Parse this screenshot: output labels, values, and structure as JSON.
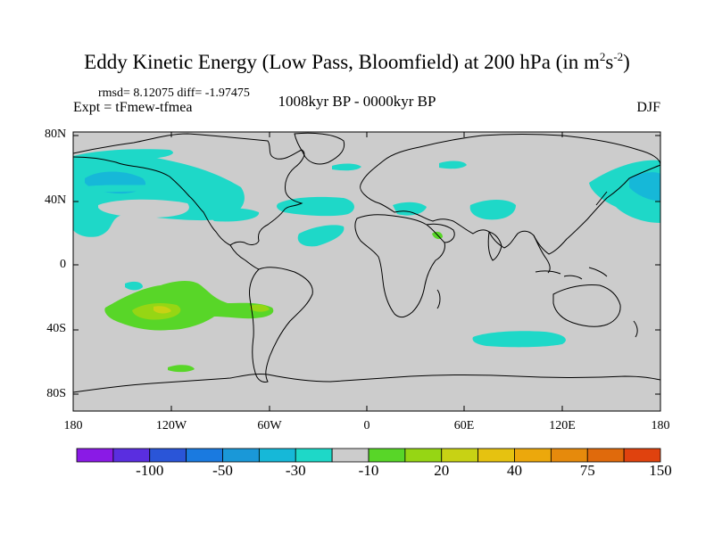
{
  "title": {
    "main": "Eddy Kinetic Energy (Low Pass, Bloomfield) at 200 hPa (in m",
    "sup1": "2",
    "mid": "s",
    "sup2": "-2",
    "close": ")"
  },
  "stats": "rmsd= 8.12075 diff= -1.97475",
  "experiment": "Expt = tFmew-tfmea",
  "period": "1008kyr BP - 0000kyr BP",
  "season": "DJF",
  "lat_labels": [
    "80N",
    "40N",
    "0",
    "40S",
    "80S"
  ],
  "lon_labels": [
    "180",
    "120W",
    "60W",
    "0",
    "60E",
    "120E",
    "180"
  ],
  "colorbar": {
    "colors": [
      "#8a1ae6",
      "#5a2ee0",
      "#2a55d8",
      "#1a7ae0",
      "#1a98d8",
      "#16b8d8",
      "#1ed8c8",
      "#cccccc",
      "#58d628",
      "#96d614",
      "#c8d214",
      "#e6c210",
      "#eca80c",
      "#e68a0c",
      "#e06a0c",
      "#e0420e"
    ],
    "labels": [
      "-100",
      "-50",
      "-30",
      "-10",
      "20",
      "40",
      "75",
      "150"
    ]
  },
  "map": {
    "background_color": "#cccccc",
    "anomaly_regions": [
      {
        "name": "north-pacific-negative",
        "color": "#1ed8c8"
      },
      {
        "name": "north-pacific-core",
        "color": "#16b8d8"
      },
      {
        "name": "north-atlantic-negative",
        "color": "#1ed8c8"
      },
      {
        "name": "south-pacific-positive",
        "color": "#58d628"
      },
      {
        "name": "south-pacific-core",
        "color": "#96d614"
      },
      {
        "name": "south-indian-negative",
        "color": "#1ed8c8"
      }
    ]
  }
}
